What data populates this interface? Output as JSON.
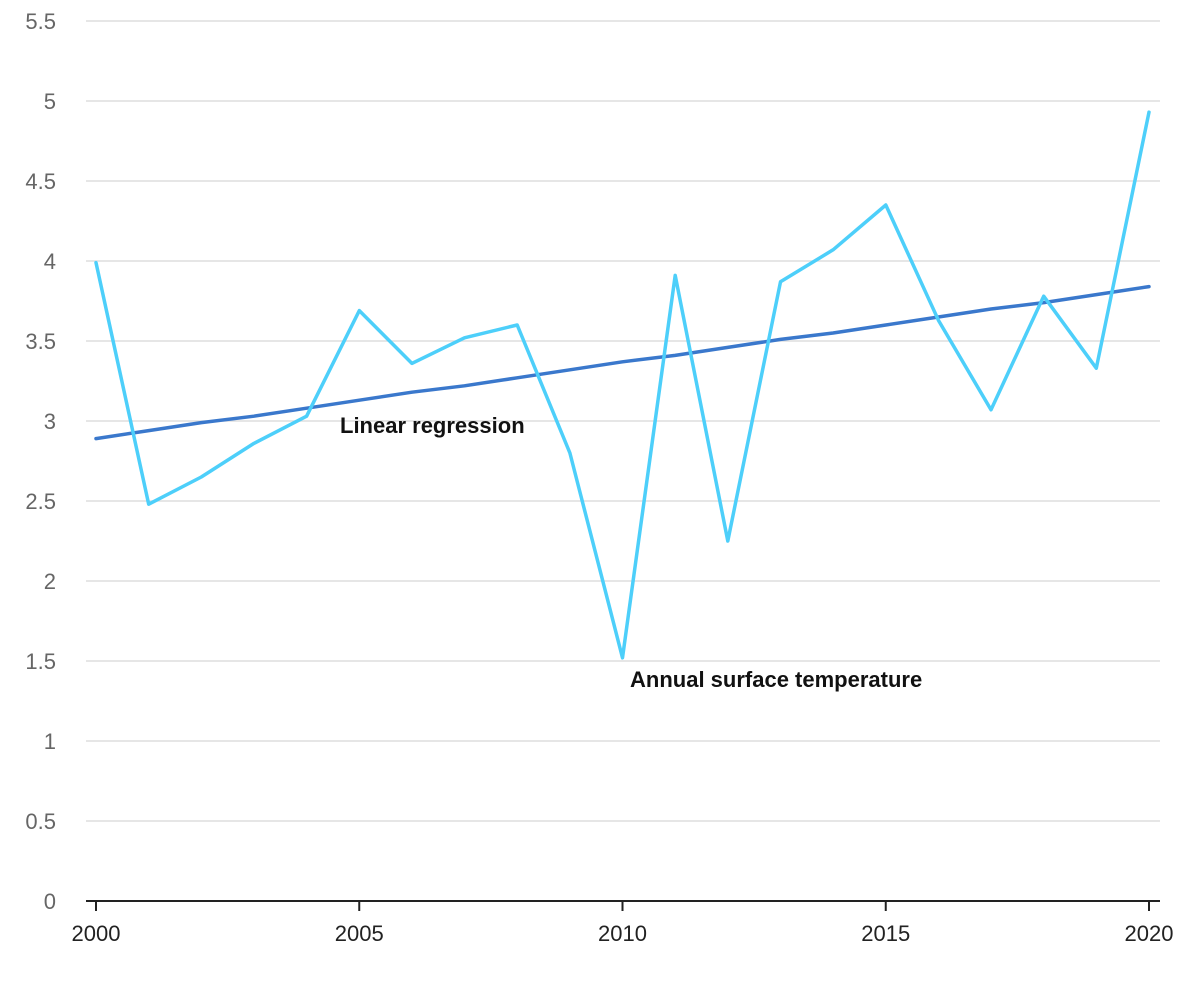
{
  "chart_data": {
    "type": "line",
    "x": [
      2000,
      2001,
      2002,
      2003,
      2004,
      2005,
      2006,
      2007,
      2008,
      2009,
      2010,
      2011,
      2012,
      2013,
      2014,
      2015,
      2016,
      2017,
      2018,
      2019,
      2020
    ],
    "series": [
      {
        "name": "Annual surface temperature",
        "color": "#4dcffa",
        "values": [
          3.99,
          2.48,
          2.65,
          2.86,
          3.03,
          3.69,
          3.36,
          3.52,
          3.6,
          2.8,
          1.52,
          3.91,
          2.25,
          3.87,
          4.07,
          4.35,
          3.63,
          3.07,
          3.78,
          3.33,
          4.93
        ]
      },
      {
        "name": "Linear regression",
        "color": "#3a78cc",
        "values": [
          2.89,
          2.94,
          2.99,
          3.03,
          3.08,
          3.13,
          3.18,
          3.22,
          3.27,
          3.32,
          3.37,
          3.41,
          3.46,
          3.51,
          3.55,
          3.6,
          3.65,
          3.7,
          3.74,
          3.79,
          3.84
        ]
      }
    ],
    "ylim": [
      0,
      5.5
    ],
    "xlim": [
      2000,
      2020
    ],
    "y_ticks": [
      "0",
      "0.5",
      "1",
      "1.5",
      "2",
      "2.5",
      "3",
      "3.5",
      "4",
      "4.5",
      "5",
      "5.5"
    ],
    "x_ticks": [
      "2000",
      "2005",
      "2010",
      "2015",
      "2020"
    ],
    "grid": "horizontal",
    "title": "",
    "xlabel": "",
    "ylabel": ""
  }
}
